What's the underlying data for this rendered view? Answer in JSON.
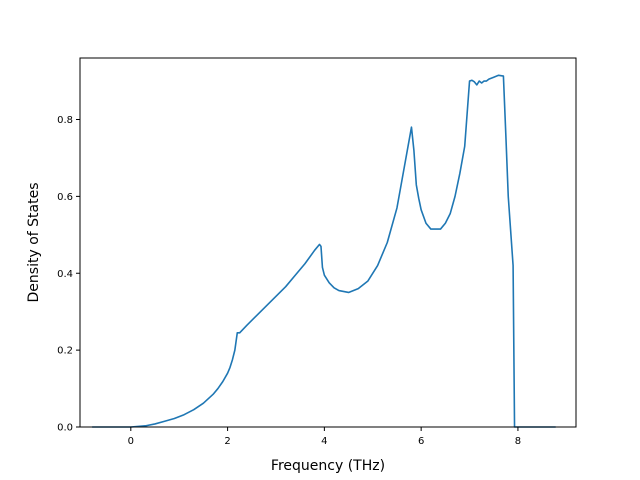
{
  "chart_data": {
    "type": "line",
    "title": "",
    "xlabel": "Frequency (THz)",
    "ylabel": "Density of States",
    "xlim": [
      -1.05,
      9.2
    ],
    "ylim": [
      0.0,
      0.96
    ],
    "xticks": [
      0,
      2,
      4,
      6,
      8
    ],
    "yticks": [
      0.0,
      0.2,
      0.4,
      0.6,
      0.8
    ],
    "xtick_labels": [
      "0",
      "2",
      "4",
      "6",
      "8"
    ],
    "ytick_labels": [
      "0.0",
      "0.2",
      "0.4",
      "0.6",
      "0.8"
    ],
    "grid": false,
    "legend": false,
    "line_color": "#1f77b4",
    "series": [
      {
        "x": [
          -0.8,
          0.0,
          0.3,
          0.5,
          0.7,
          0.9,
          1.1,
          1.3,
          1.5,
          1.7,
          1.8,
          1.9,
          2.0,
          2.05,
          2.1,
          2.15,
          2.2,
          2.25,
          2.4,
          2.6,
          2.8,
          3.0,
          3.2,
          3.4,
          3.6,
          3.8,
          3.9,
          3.93,
          3.96,
          4.0,
          4.1,
          4.2,
          4.3,
          4.5,
          4.7,
          4.9,
          5.1,
          5.3,
          5.5,
          5.6,
          5.7,
          5.8,
          5.85,
          5.9,
          5.95,
          6.0,
          6.1,
          6.2,
          6.4,
          6.5,
          6.6,
          6.7,
          6.8,
          6.9,
          7.0,
          7.05,
          7.1,
          7.15,
          7.2,
          7.25,
          7.3,
          7.35,
          7.4,
          7.5,
          7.6,
          7.7,
          7.75,
          7.8,
          7.9,
          7.93,
          8.0,
          8.78
        ],
        "y": [
          0.0,
          0.0,
          0.003,
          0.008,
          0.015,
          0.022,
          0.032,
          0.045,
          0.062,
          0.085,
          0.1,
          0.118,
          0.14,
          0.155,
          0.175,
          0.2,
          0.245,
          0.245,
          0.265,
          0.29,
          0.315,
          0.34,
          0.365,
          0.395,
          0.425,
          0.46,
          0.475,
          0.47,
          0.415,
          0.395,
          0.375,
          0.362,
          0.355,
          0.35,
          0.36,
          0.38,
          0.42,
          0.48,
          0.57,
          0.64,
          0.71,
          0.78,
          0.72,
          0.63,
          0.595,
          0.565,
          0.53,
          0.515,
          0.515,
          0.53,
          0.555,
          0.6,
          0.66,
          0.73,
          0.9,
          0.902,
          0.898,
          0.89,
          0.9,
          0.895,
          0.9,
          0.9,
          0.905,
          0.91,
          0.915,
          0.913,
          0.76,
          0.6,
          0.42,
          0.0,
          0.0,
          0.0
        ]
      }
    ]
  }
}
